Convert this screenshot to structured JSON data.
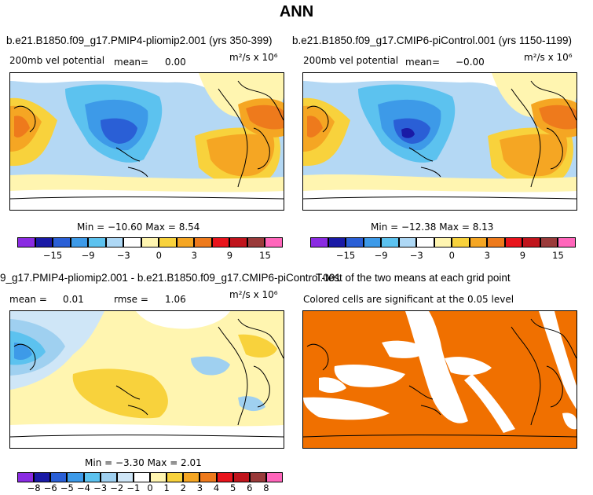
{
  "title": "ANN",
  "panels": {
    "top_left": {
      "title": "b.e21.B1850.f09_g17.PMIP4-pliomip2.001 (yrs 350-399)",
      "field": "200mb vel potential",
      "mean_label": "mean=",
      "mean": "0.00",
      "units": "m²/s x 10⁶",
      "minmax": "Min = −10.60 Max =  8.54"
    },
    "top_right": {
      "title": "b.e21.B1850.f09_g17.CMIP6-piControl.001 (yrs 1150-1199)",
      "field": "200mb vel potential",
      "mean_label": "mean=",
      "mean": "−0.00",
      "units": "m²/s x 10⁶",
      "minmax": "Min = −12.38 Max =  8.13"
    },
    "bottom_left": {
      "title": "9_g17.PMIP4-pliomip2.001 - b.e21.B1850.f09_g17.CMIP6-piControl.001",
      "mean_label": "mean =",
      "mean": "0.01",
      "rmse_label": "rmse =",
      "rmse": "1.06",
      "units": "m²/s x 10⁶",
      "minmax": "Min = −3.30 Max =  2.01"
    },
    "bottom_right": {
      "title": "T-test of the two means at each grid point",
      "subtitle": "Colored cells are significant at the 0.05 level"
    }
  },
  "colorbar_top": {
    "colors": [
      "#8a2be2",
      "#1a1aa6",
      "#2a5fd6",
      "#3d9ae8",
      "#5cc2ef",
      "#aed8f5",
      "#ffffff",
      "#fff5b0",
      "#f8d23c",
      "#f5a623",
      "#ee7a1c",
      "#e8141c",
      "#c0141c",
      "#9a3a3a",
      "#ff66bb"
    ],
    "ticks": [
      "−15",
      "−9",
      "−3",
      "0",
      "3",
      "9",
      "15"
    ]
  },
  "colorbar_bottom": {
    "colors": [
      "#8a2be2",
      "#1a1aa6",
      "#2a5fd6",
      "#3d9ae8",
      "#5cc2ef",
      "#9fd0f0",
      "#cfe6f7",
      "#ffffff",
      "#fff5b0",
      "#f8d23c",
      "#f5a623",
      "#ee7a1c",
      "#e8141c",
      "#c0141c",
      "#9a3a3a",
      "#ff66bb"
    ],
    "ticks": [
      "−8",
      "−6",
      "−5",
      "−4",
      "−3",
      "−2",
      "−1",
      "0",
      "1",
      "2",
      "3",
      "4",
      "5",
      "6",
      "8"
    ]
  },
  "colors": {
    "significance": "#f07000"
  }
}
